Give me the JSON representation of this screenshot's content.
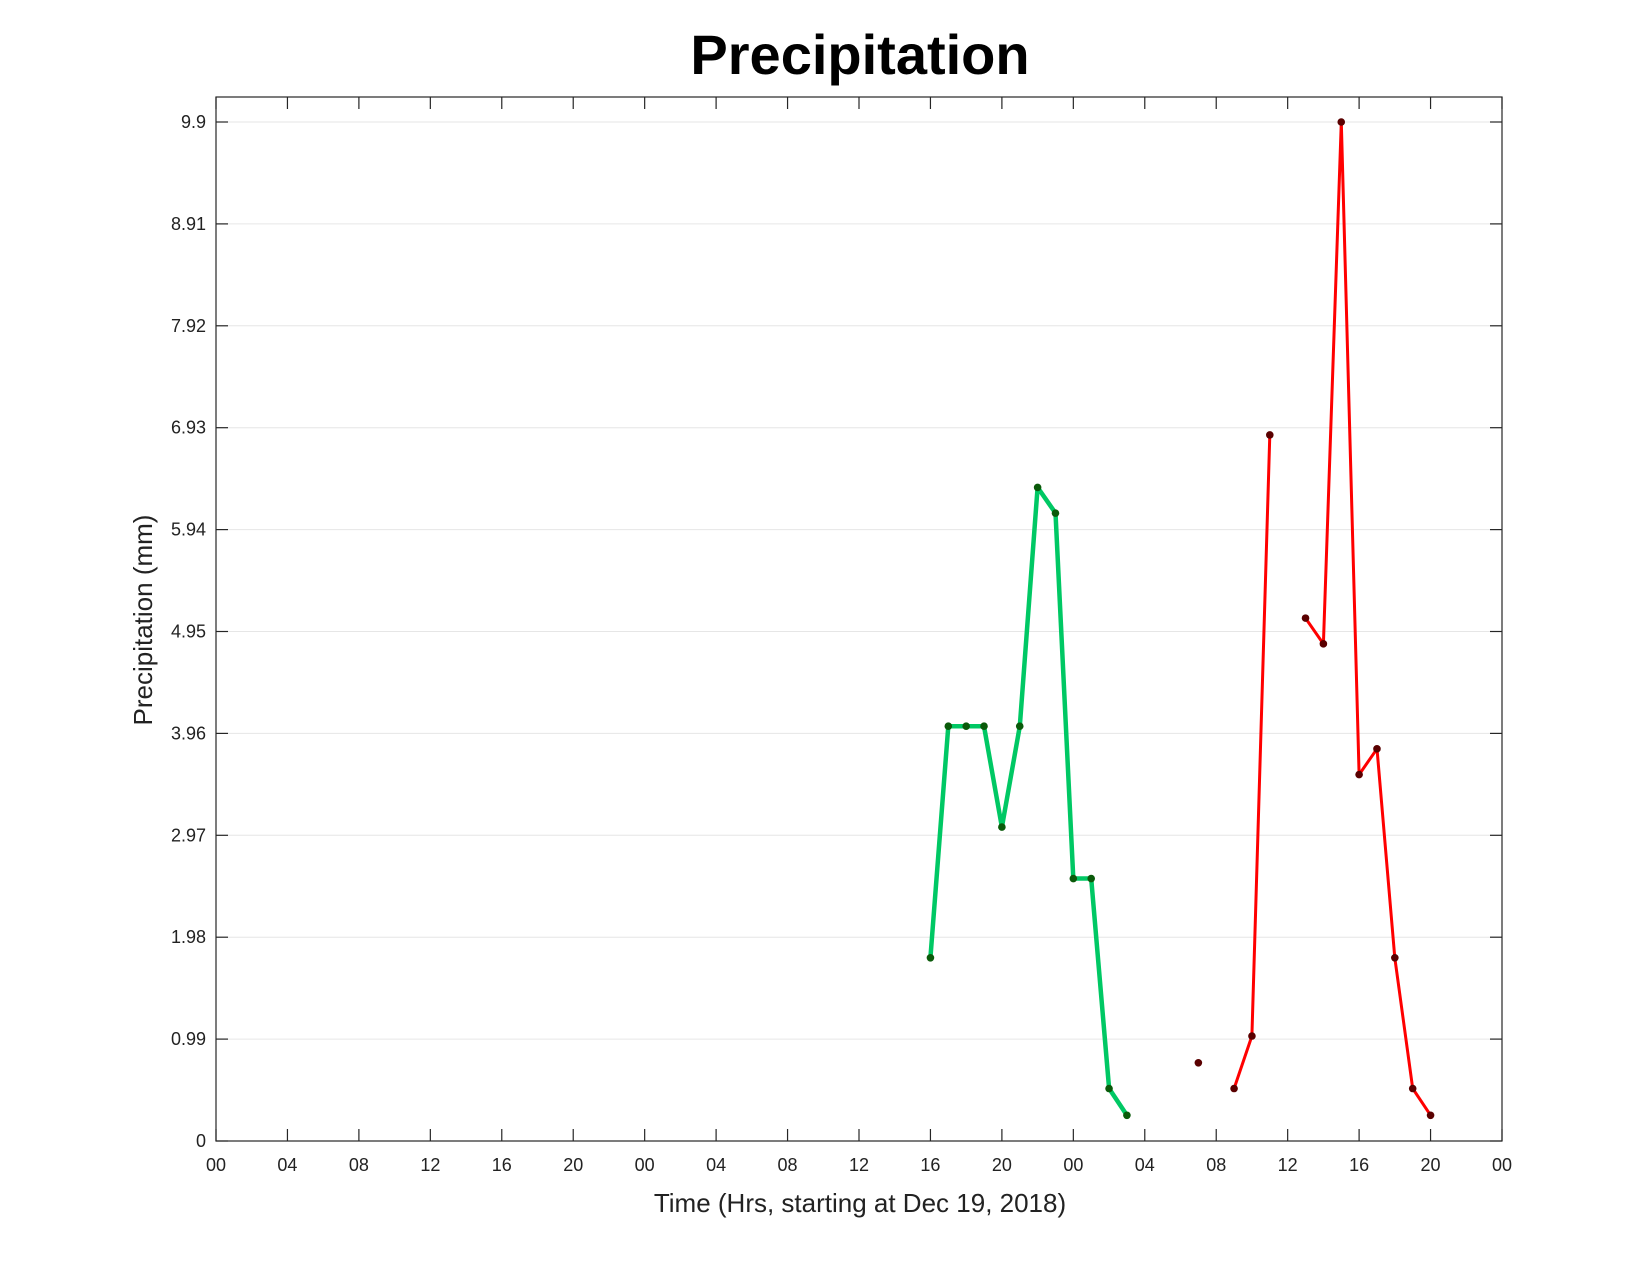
{
  "chart_data": {
    "type": "line",
    "title": "Precipitation",
    "xlabel": "Time (Hrs, starting at Dec 19, 2018)",
    "ylabel": "Precipitation (mm)",
    "x_unit": "hours",
    "xlim": [
      0,
      72
    ],
    "ylim": [
      0,
      9.9
    ],
    "x_tick_labels": [
      "00",
      "04",
      "08",
      "12",
      "16",
      "20",
      "00",
      "04",
      "08",
      "12",
      "16",
      "20",
      "00",
      "04",
      "08",
      "12",
      "16",
      "20",
      "00"
    ],
    "y_tick_values": [
      0,
      0.99,
      1.98,
      2.97,
      3.96,
      4.95,
      5.94,
      6.93,
      7.92,
      8.91,
      9.9
    ],
    "y_tick_labels": [
      "0",
      "0.99",
      "1.98",
      "2.97",
      "3.96",
      "4.95",
      "5.94",
      "6.93",
      "7.92",
      "8.91",
      "9.9"
    ],
    "grid": "horizontal",
    "series": [
      {
        "color": "#00c864",
        "marker_color": "#0a5a0a",
        "points": [
          [
            40,
            1.78
          ],
          [
            41,
            4.03
          ],
          [
            42,
            4.03
          ],
          [
            43,
            4.03
          ],
          [
            44,
            3.05
          ],
          [
            45,
            4.03
          ],
          [
            46,
            6.35
          ],
          [
            47,
            6.1
          ],
          [
            48,
            2.55
          ],
          [
            49,
            2.55
          ],
          [
            50,
            0.51
          ],
          [
            51,
            0.25
          ]
        ]
      },
      {
        "color": "#ff0000",
        "marker_color": "#5a0000",
        "segments": [
          [
            [
              55,
              0.76
            ]
          ],
          [
            [
              57,
              0.51
            ],
            [
              58,
              1.02
            ],
            [
              59,
              6.86
            ]
          ],
          [
            [
              61,
              5.08
            ],
            [
              62,
              4.83
            ],
            [
              63,
              9.9
            ],
            [
              64,
              3.56
            ],
            [
              65,
              3.81
            ],
            [
              66,
              1.78
            ],
            [
              67,
              0.51
            ],
            [
              68,
              0.25
            ]
          ]
        ]
      }
    ]
  }
}
